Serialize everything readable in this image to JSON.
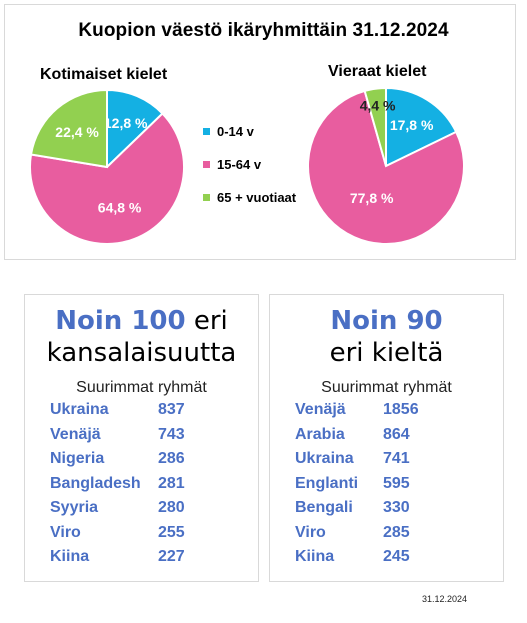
{
  "colors": {
    "age_0_14": "#14b0e3",
    "age_15_64": "#e85d9f",
    "age_65_plus": "#92d050",
    "accent_blue": "#4a6fc4"
  },
  "chart_data": {
    "type": "pie",
    "title": "Kuopion väestö ikäryhmittäin 31.12.2024",
    "legend": {
      "placement": "center",
      "entries": [
        "0-14 v",
        "15-64 v",
        "65 + vuotiaat"
      ]
    },
    "charts": [
      {
        "title": "Kotimaiset kielet",
        "slices": [
          {
            "category": "0-14 v",
            "value": 12.8,
            "label": "12,8 %"
          },
          {
            "category": "15-64 v",
            "value": 64.8,
            "label": "64,8 %"
          },
          {
            "category": "65 + vuotiaat",
            "value": 22.4,
            "label": "22,4 %"
          }
        ]
      },
      {
        "title": "Vieraat kielet",
        "slices": [
          {
            "category": "0-14 v",
            "value": 17.8,
            "label": "17,8 %"
          },
          {
            "category": "15-64 v",
            "value": 77.8,
            "label": "77,8 %"
          },
          {
            "category": "65 + vuotiaat",
            "value": 4.4,
            "label": "4,4 %"
          }
        ]
      }
    ]
  },
  "nationalities": {
    "headline_strong": "Noin 100",
    "headline_rest": " eri",
    "headline_line2": "kansalaisuutta",
    "subtitle": "Suurimmat ryhmät",
    "rows": [
      {
        "name": "Ukraina",
        "value": "837"
      },
      {
        "name": "Venäjä",
        "value": "743"
      },
      {
        "name": "Nigeria",
        "value": "286"
      },
      {
        "name": "Bangladesh",
        "value": "281"
      },
      {
        "name": "Syyria",
        "value": "280"
      },
      {
        "name": "Viro",
        "value": "255"
      },
      {
        "name": "Kiina",
        "value": "227"
      }
    ]
  },
  "languages": {
    "headline_strong": "Noin 90",
    "headline_line2": "eri kieltä",
    "subtitle": "Suurimmat ryhmät",
    "rows": [
      {
        "name": "Venäjä",
        "value": "1856"
      },
      {
        "name": "Arabia",
        "value": "864"
      },
      {
        "name": "Ukraina",
        "value": "741"
      },
      {
        "name": "Englanti",
        "value": "595"
      },
      {
        "name": "Bengali",
        "value": "330"
      },
      {
        "name": "Viro",
        "value": "285"
      },
      {
        "name": "Kiina",
        "value": "245"
      }
    ]
  },
  "footnote": "31.12.2024"
}
